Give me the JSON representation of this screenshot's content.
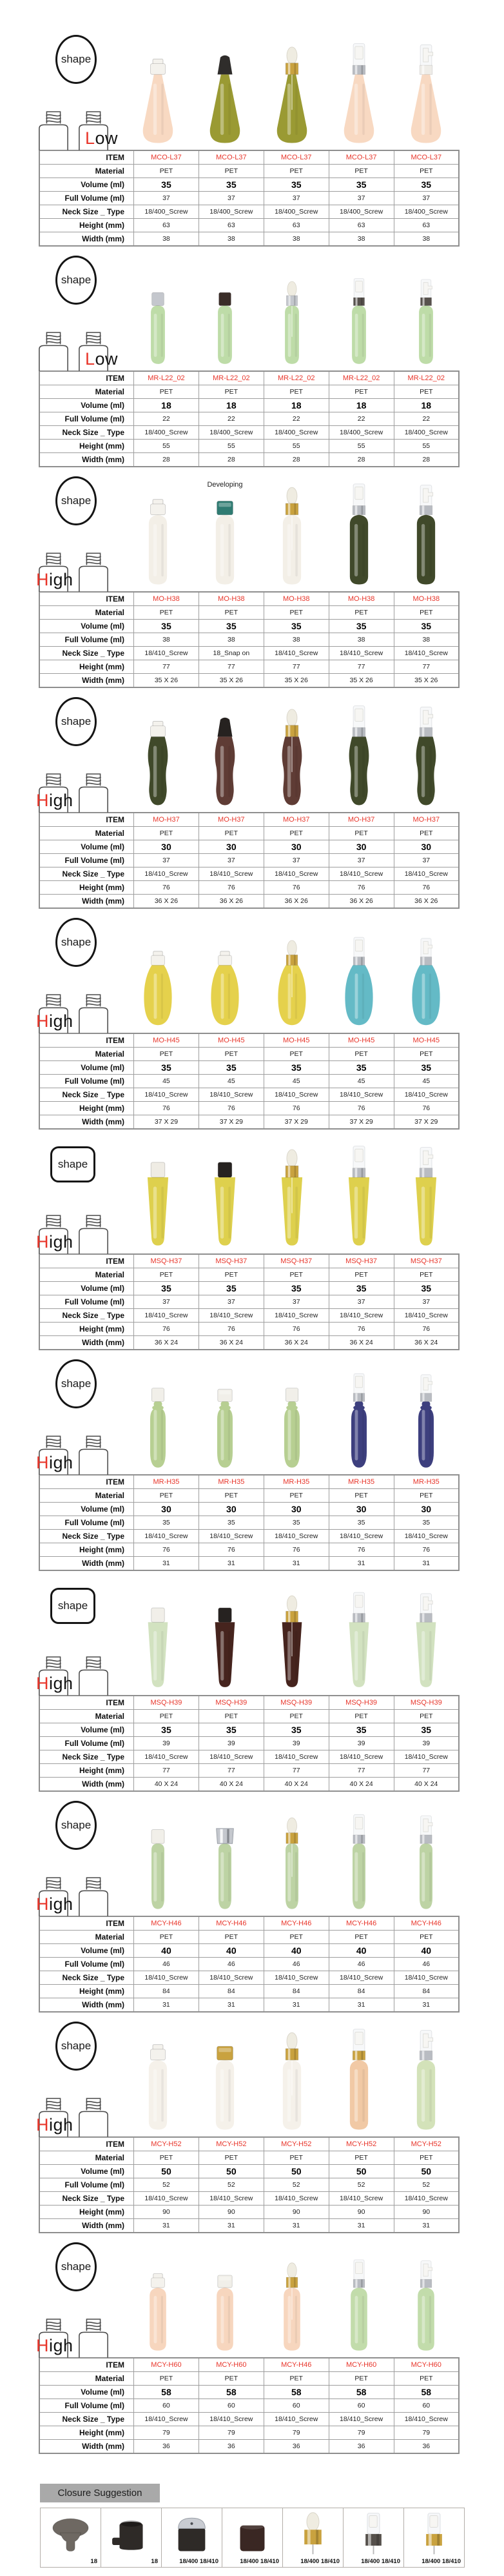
{
  "labels": {
    "shape_badge": "shape",
    "closure_title": "Closure Suggestion"
  },
  "table_labels": {
    "item": "ITEM",
    "material": "Material",
    "volume": "Volume (ml)",
    "full_volume": "Full Volume (ml)",
    "neck": "Neck Size _ Type",
    "height": "Height (mm)",
    "width": "Width (mm)"
  },
  "colors": {
    "accent_red": "#e8352a",
    "gold": "#c9a23f",
    "silver": "#b9bcc2",
    "table_border": "#9e9e9e",
    "closure_bar_bg": "#a9a9a9"
  },
  "sections": [
    {
      "id": "MCO-L37",
      "badge": "ellipse",
      "level": "Low",
      "bottle_height": 168,
      "rows": {
        "item": "MCO-L37",
        "material": "PET",
        "volume": "35",
        "full_volume": "37",
        "neck": "18/400_Screw",
        "height": "63",
        "width": "38"
      },
      "bottles": [
        {
          "shape": "cone",
          "body": "#f8d9c2",
          "cap": "disc",
          "cap_color": "#f4f2ed"
        },
        {
          "shape": "cone",
          "body": "#9a9a33",
          "cap": "shroud",
          "cap_color": "#2f2d2b"
        },
        {
          "shape": "cone",
          "body": "#9a9a33",
          "cap": "dropper",
          "cap_color": "#c9a23f"
        },
        {
          "shape": "cone",
          "body": "#f8d9c2",
          "cap": "sprayer",
          "cap_color": "#b9bcc2"
        },
        {
          "shape": "cone",
          "body": "#f8d9c2",
          "cap": "pump",
          "cap_color": "#efede8"
        }
      ]
    },
    {
      "id": "MR-L22_02",
      "badge": "ellipse",
      "level": "Low",
      "bottle_height": 148,
      "rows": {
        "item": "MR-L22_02",
        "material": "PET",
        "volume": "18",
        "full_volume": "22",
        "neck": "18/400_Screw",
        "height": "55",
        "width": "28"
      },
      "bottles": [
        {
          "shape": "small",
          "body": "#bedca8",
          "cap": "screw",
          "cap_color": "#c4c7cd"
        },
        {
          "shape": "small",
          "body": "#bedca8",
          "cap": "screw",
          "cap_color": "#3a2d28"
        },
        {
          "shape": "small",
          "body": "#bedca8",
          "cap": "dropper",
          "cap_color": "#c4c7cd"
        },
        {
          "shape": "small",
          "body": "#bedca8",
          "cap": "sprayer",
          "cap_color": "#57524d"
        },
        {
          "shape": "small",
          "body": "#bedca8",
          "cap": "pump",
          "cap_color": "#57524d"
        }
      ]
    },
    {
      "id": "MO-H38",
      "badge": "ellipse",
      "level": "High",
      "bottle_height": 168,
      "rows": {
        "item": "MO-H38",
        "material": "PET",
        "volume": "35",
        "full_volume": "38",
        "neck": [
          "18/410_Screw",
          "18_Snap on",
          "18/410_Screw",
          "18/410_Screw",
          "18/410_Screw"
        ],
        "height": "77",
        "width": "35 X 26"
      },
      "bottles": [
        {
          "shape": "cylinder",
          "body": "#f3efe7",
          "cap": "disc",
          "cap_color": "#f4f2ed"
        },
        {
          "shape": "cylinder",
          "body": "#f3efe7",
          "cap": "snap",
          "cap_color": "#2f7b72",
          "note": "Developing"
        },
        {
          "shape": "cylinder",
          "body": "#f3efe7",
          "cap": "dropper",
          "cap_color": "#c9a23f"
        },
        {
          "shape": "cylinder",
          "body": "#40492a",
          "cap": "sprayer",
          "cap_color": "#b9bcc2"
        },
        {
          "shape": "cylinder",
          "body": "#40492a",
          "cap": "pump",
          "cap_color": "#b9bcc2"
        }
      ]
    },
    {
      "id": "MO-H37",
      "badge": "ellipse",
      "level": "High",
      "bottle_height": 168,
      "rows": {
        "item": "MO-H37",
        "material": "PET",
        "volume": "30",
        "full_volume": "37",
        "neck": "18/410_Screw",
        "height": "76",
        "width": "36 X 26"
      },
      "bottles": [
        {
          "shape": "curve",
          "body": "#40492a",
          "cap": "disc",
          "cap_color": "#f4f2ed"
        },
        {
          "shape": "curve",
          "body": "#5f3c35",
          "cap": "shroud",
          "cap_color": "#262220"
        },
        {
          "shape": "curve",
          "body": "#5f3c35",
          "cap": "dropper",
          "cap_color": "#c9a23f"
        },
        {
          "shape": "curve",
          "body": "#40492a",
          "cap": "sprayer",
          "cap_color": "#b9bcc2"
        },
        {
          "shape": "curve",
          "body": "#40492a",
          "cap": "pump",
          "cap_color": "#b9bcc2"
        }
      ]
    },
    {
      "id": "MO-H45",
      "badge": "ellipse",
      "level": "High",
      "bottle_height": 152,
      "rows": {
        "item": "MO-H45",
        "material": "PET",
        "volume": "35",
        "full_volume": "45",
        "neck": "18/410_Screw",
        "height": "76",
        "width": "37 X 29"
      },
      "bottles": [
        {
          "shape": "oval",
          "body": "#e5d14c",
          "cap": "disc",
          "cap_color": "#f4f2ed"
        },
        {
          "shape": "oval",
          "body": "#e5d14c",
          "cap": "disc",
          "cap_color": "#f4f2ed"
        },
        {
          "shape": "oval",
          "body": "#e5d14c",
          "cap": "dropper",
          "cap_color": "#c9a23f"
        },
        {
          "shape": "oval",
          "body": "#64bac6",
          "cap": "sprayer",
          "cap_color": "#b9bcc2"
        },
        {
          "shape": "oval",
          "body": "#64bac6",
          "cap": "pump",
          "cap_color": "#b9bcc2"
        }
      ]
    },
    {
      "id": "MSQ-H37",
      "badge": "square",
      "level": "High",
      "bottle_height": 170,
      "rows": {
        "item": "MSQ-H37",
        "material": "PET",
        "volume": "35",
        "full_volume": "37",
        "neck": "18/410_Screw",
        "height": "76",
        "width": "36 X 24"
      },
      "bottles": [
        {
          "shape": "taper",
          "body": "#ded04d",
          "cap": "screw",
          "cap_color": "#efece4"
        },
        {
          "shape": "taper",
          "body": "#ded04d",
          "cap": "screw",
          "cap_color": "#262220"
        },
        {
          "shape": "taper",
          "body": "#ded04d",
          "cap": "dropper",
          "cap_color": "#c9a23f"
        },
        {
          "shape": "taper",
          "body": "#ded04d",
          "cap": "sprayer",
          "cap_color": "#b9bcc2"
        },
        {
          "shape": "taper",
          "body": "#ded04d",
          "cap": "pump",
          "cap_color": "#b9bcc2"
        }
      ]
    },
    {
      "id": "MR-H35",
      "badge": "ellipse",
      "level": "High",
      "bottle_height": 152,
      "rows": {
        "item": "MR-H35",
        "material": "PET",
        "volume": "30",
        "full_volume": "35",
        "neck": "18/410_Screw",
        "height": "76",
        "width": "31"
      },
      "bottles": [
        {
          "shape": "capsule",
          "body": "#b7cf92",
          "cap": "screw",
          "cap_color": "#f1efe9"
        },
        {
          "shape": "capsule",
          "body": "#b7cf92",
          "cap": "snap",
          "cap_color": "#f1efe9"
        },
        {
          "shape": "capsule",
          "body": "#b7cf92",
          "cap": "screw",
          "cap_color": "#f1efe9"
        },
        {
          "shape": "capsule",
          "body": "#3d3f7e",
          "cap": "sprayer",
          "cap_color": "#b9bcc2"
        },
        {
          "shape": "capsule",
          "body": "#3d3f7e",
          "cap": "pump",
          "cap_color": "#b9bcc2"
        }
      ]
    },
    {
      "id": "MSQ-H39",
      "badge": "square",
      "level": "High",
      "bottle_height": 162,
      "rows": {
        "item": "MSQ-H39",
        "material": "PET",
        "volume": "35",
        "full_volume": "39",
        "neck": "18/410_Screw",
        "height": "77",
        "width": "40 X 24"
      },
      "bottles": [
        {
          "shape": "taper",
          "body": "#d2e2c0",
          "cap": "screw",
          "cap_color": "#f1efe9"
        },
        {
          "shape": "taper",
          "body": "#46241e",
          "cap": "screw",
          "cap_color": "#262220"
        },
        {
          "shape": "taper",
          "body": "#46241e",
          "cap": "dropper",
          "cap_color": "#c9a23f"
        },
        {
          "shape": "taper",
          "body": "#d2e2c0",
          "cap": "sprayer",
          "cap_color": "#b9bcc2"
        },
        {
          "shape": "taper",
          "body": "#d2e2c0",
          "cap": "pump",
          "cap_color": "#b9bcc2"
        }
      ]
    },
    {
      "id": "MCY-H46",
      "badge": "ellipse",
      "level": "High",
      "bottle_height": 158,
      "rows": {
        "item": "MCY-H46",
        "material": "PET",
        "volume": "40",
        "full_volume": "46",
        "neck": "18/410_Screw",
        "height": "84",
        "width": "31"
      },
      "bottles": [
        {
          "shape": "slim",
          "body": "#bdd3a4",
          "cap": "screw",
          "cap_color": "#f1efe9"
        },
        {
          "shape": "slim",
          "body": "#bdd3a4",
          "cap": "silvercap",
          "cap_color": "#c4c7cd"
        },
        {
          "shape": "slim",
          "body": "#bdd3a4",
          "cap": "dropper",
          "cap_color": "#c9a23f"
        },
        {
          "shape": "slim",
          "body": "#bdd3a4",
          "cap": "sprayer",
          "cap_color": "#b9bcc2"
        },
        {
          "shape": "slim",
          "body": "#bdd3a4",
          "cap": "pump",
          "cap_color": "#b9bcc2"
        }
      ]
    },
    {
      "id": "MCY-H52",
      "badge": "ellipse",
      "level": "High",
      "bottle_height": 168,
      "rows": {
        "item": "MCY-H52",
        "material": "PET",
        "volume": "50",
        "full_volume": "52",
        "neck": "18/410_Screw",
        "height": "90",
        "width": "31"
      },
      "bottles": [
        {
          "shape": "cylinder",
          "body": "#f5f1ea",
          "cap": "disc",
          "cap_color": "#f4f2ed"
        },
        {
          "shape": "cylinder",
          "body": "#f5f1ea",
          "cap": "snap",
          "cap_color": "#c9a23f"
        },
        {
          "shape": "cylinder",
          "body": "#f5f1ea",
          "cap": "dropper",
          "cap_color": "#c9a23f"
        },
        {
          "shape": "cylinder",
          "body": "#f1c9a5",
          "cap": "sprayer",
          "cap_color": "#c9a23f"
        },
        {
          "shape": "cylinder",
          "body": "#d3e2b9",
          "cap": "pump",
          "cap_color": "#b9bcc2"
        }
      ]
    },
    {
      "id": "MCY-H60",
      "badge": "ellipse",
      "level": "High",
      "bottle_height": 152,
      "rows": {
        "item": [
          "MCY-H60",
          "MCY-H60",
          "MCY-H46",
          "MCY-H60",
          "MCY-H60"
        ],
        "material": "PET",
        "volume": "58",
        "full_volume": "60",
        "neck": "18/410_Screw",
        "height": "79",
        "width": "36"
      },
      "bottles": [
        {
          "shape": "cylinder",
          "body": "#f7d6be",
          "cap": "disc",
          "cap_color": "#f4f2ed"
        },
        {
          "shape": "cylinder",
          "body": "#f7d6be",
          "cap": "snap",
          "cap_color": "#f1efe9"
        },
        {
          "shape": "cylinder",
          "body": "#f7d6be",
          "cap": "dropper",
          "cap_color": "#c9a23f"
        },
        {
          "shape": "cylinder",
          "body": "#c2dcab",
          "cap": "sprayer",
          "cap_color": "#b9bcc2"
        },
        {
          "shape": "cylinder",
          "body": "#c2dcab",
          "cap": "pump",
          "cap_color": "#b9bcc2"
        }
      ]
    }
  ],
  "closures": [
    {
      "label": "18",
      "kind": "plug",
      "color": "#6e6862"
    },
    {
      "label": "18",
      "kind": "flip",
      "color": "#2e2a27"
    },
    {
      "label": "18/400 18/410",
      "kind": "dome",
      "color": "#2e2a27",
      "top_color": "#c9ccd2"
    },
    {
      "label": "18/400 18/410",
      "kind": "flat",
      "color": "#3a2723"
    },
    {
      "label": "18/400 18/410",
      "kind": "dropper",
      "color": "#c9a23f"
    },
    {
      "label": "18/400 18/410",
      "kind": "sprayer",
      "color": "#55504b"
    },
    {
      "label": "18/400 18/410",
      "kind": "sprayer",
      "color": "#c9a23f"
    }
  ]
}
